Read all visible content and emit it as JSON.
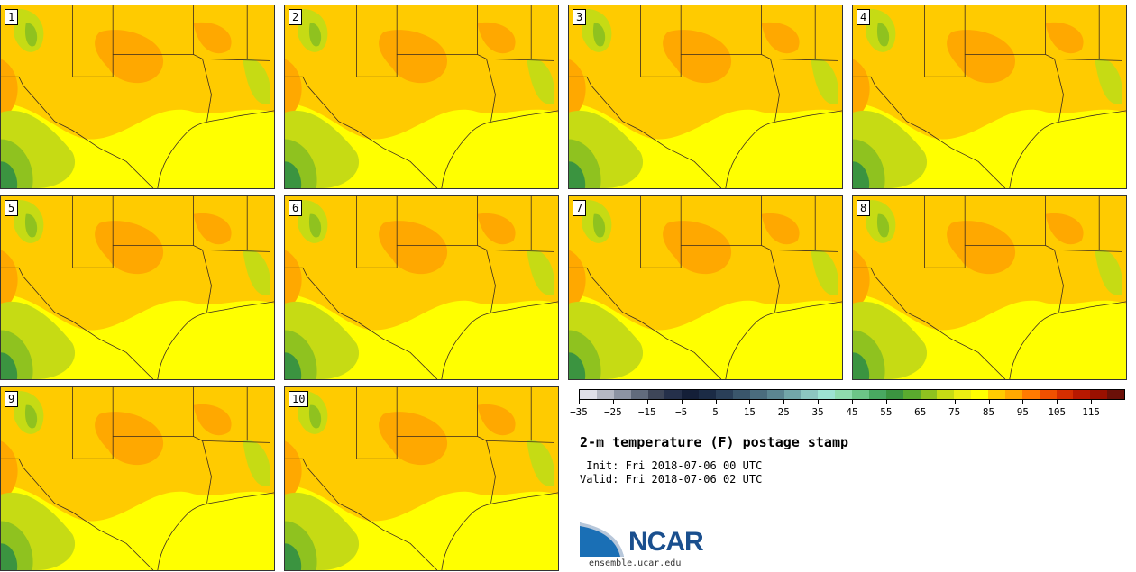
{
  "panels": [
    {
      "label": "1"
    },
    {
      "label": "2"
    },
    {
      "label": "3"
    },
    {
      "label": "4"
    },
    {
      "label": "5"
    },
    {
      "label": "6"
    },
    {
      "label": "7"
    },
    {
      "label": "8"
    },
    {
      "label": "9"
    },
    {
      "label": "10"
    }
  ],
  "colorbar": {
    "min": -35,
    "max": 125,
    "step": 5,
    "tick_labels": [
      "-35",
      "-25",
      "-15",
      "-5",
      "5",
      "15",
      "25",
      "35",
      "45",
      "55",
      "65",
      "75",
      "85",
      "95",
      "105",
      "115"
    ],
    "colors": [
      "#e0e0e8",
      "#b5b8c3",
      "#8c93a2",
      "#616b7c",
      "#3e4658",
      "#25304a",
      "#141f38",
      "#1b2b45",
      "#2a3f58",
      "#3a566b",
      "#4a6c7d",
      "#5b8591",
      "#72a6a9",
      "#8cc6c0",
      "#9de3d2",
      "#8fdcae",
      "#6cc587",
      "#49a861",
      "#3b9440",
      "#5aab2e",
      "#8fc21f",
      "#c6db14",
      "#ecee12",
      "#ffff00",
      "#ffcb00",
      "#ffa800",
      "#ff7a00",
      "#f05000",
      "#d62e00",
      "#b81800",
      "#9a1000",
      "#6b1008"
    ]
  },
  "title": "2-m temperature (F) postage stamp",
  "init_line": " Init: Fri 2018-07-06 00 UTC",
  "valid_line": "Valid: Fri 2018-07-06 02 UTC",
  "logo": {
    "text": "NCAR",
    "url": "ensemble.ucar.edu"
  },
  "map_colors": {
    "hot": "#ffcb00",
    "warm": "#ffa800",
    "mild": "#ffff00",
    "cool": "#c6db14",
    "green": "#8fc21f",
    "dark_green": "#3b9440",
    "line": "#3a2a20"
  }
}
